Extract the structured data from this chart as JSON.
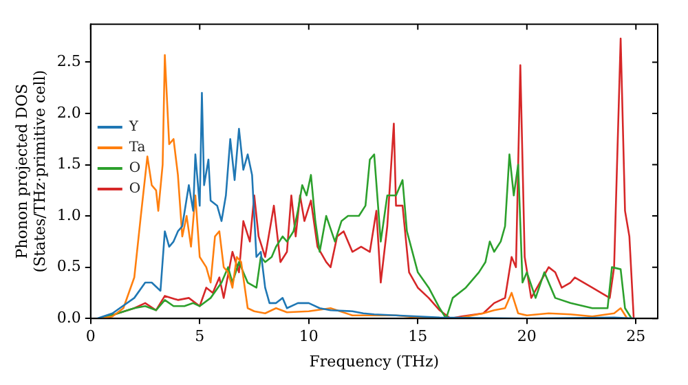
{
  "chart_data": {
    "type": "line",
    "xlabel": "Frequency (THz)",
    "ylabel": "Phonon projected DOS\n(States/THz·primitive cell)",
    "xlim": [
      0,
      26
    ],
    "ylim": [
      0,
      2.87
    ],
    "xticks": [
      0,
      5,
      10,
      15,
      20,
      25
    ],
    "yticks": [
      {
        "value": 0,
        "label": "0.0"
      },
      {
        "value": 0.5,
        "label": "0.5"
      },
      {
        "value": 1,
        "label": "1.0"
      },
      {
        "value": 1.5,
        "label": "1.5"
      },
      {
        "value": 2,
        "label": "2.0"
      },
      {
        "value": 2.5,
        "label": "2.5"
      }
    ],
    "grid": false,
    "legend": "top",
    "marker": "none",
    "line_style": "solid",
    "series": [
      {
        "name": "Y",
        "color": "#1f77b4",
        "x": [
          0.3,
          1,
          2,
          2.5,
          2.8,
          3.2,
          3.4,
          3.6,
          3.8,
          4,
          4.2,
          4.5,
          4.7,
          4.8,
          5,
          5.1,
          5.2,
          5.4,
          5.5,
          5.8,
          6,
          6.2,
          6.4,
          6.6,
          6.8,
          7,
          7.2,
          7.4,
          7.6,
          7.8,
          8,
          8.2,
          8.5,
          8.8,
          9,
          9.5,
          10,
          10.5,
          11,
          12,
          12.5,
          13,
          14,
          15,
          16,
          20,
          24,
          25
        ],
        "values": [
          0,
          0.05,
          0.2,
          0.35,
          0.35,
          0.27,
          0.85,
          0.7,
          0.75,
          0.85,
          0.9,
          1.3,
          1.05,
          1.6,
          1.1,
          2.2,
          1.3,
          1.55,
          1.15,
          1.1,
          0.95,
          1.2,
          1.75,
          1.35,
          1.85,
          1.45,
          1.6,
          1.4,
          0.6,
          0.65,
          0.3,
          0.15,
          0.15,
          0.2,
          0.1,
          0.15,
          0.15,
          0.1,
          0.08,
          0.07,
          0.05,
          0.04,
          0.03,
          0.02,
          0.01,
          0,
          0.01,
          0
        ]
      },
      {
        "name": "Ta",
        "color": "#ff7f0e",
        "x": [
          0.5,
          1,
          1.5,
          2,
          2.3,
          2.6,
          2.8,
          3,
          3.1,
          3.3,
          3.4,
          3.6,
          3.8,
          4,
          4.2,
          4.4,
          4.6,
          4.8,
          5,
          5.3,
          5.5,
          5.7,
          5.9,
          6.1,
          6.3,
          6.5,
          6.7,
          6.9,
          7.2,
          7.5,
          8,
          8.5,
          9,
          10,
          11,
          12,
          13,
          14,
          15,
          16,
          17,
          18,
          18.5,
          19,
          19.3,
          19.6,
          20,
          21,
          22,
          23,
          24,
          24.3,
          24.6
        ],
        "values": [
          0,
          0.02,
          0.1,
          0.4,
          1,
          1.58,
          1.3,
          1.25,
          1.05,
          1.5,
          2.57,
          1.7,
          1.75,
          1.4,
          0.8,
          1,
          0.7,
          1.2,
          0.6,
          0.5,
          0.35,
          0.8,
          0.85,
          0.5,
          0.45,
          0.3,
          0.6,
          0.55,
          0.1,
          0.07,
          0.05,
          0.1,
          0.06,
          0.07,
          0.1,
          0.03,
          0.03,
          0.03,
          0.01,
          0,
          0.01,
          0.05,
          0.08,
          0.1,
          0.25,
          0.05,
          0.03,
          0.05,
          0.04,
          0.02,
          0.05,
          0.1,
          0
        ]
      },
      {
        "name": "O",
        "color": "#2ca02c",
        "x": [
          0.5,
          2,
          2.5,
          3,
          3.4,
          3.8,
          4.3,
          4.7,
          5,
          5.5,
          6,
          6.3,
          6.5,
          6.8,
          7.2,
          7.6,
          7.8,
          8,
          8.3,
          8.5,
          8.8,
          9,
          9.3,
          9.5,
          9.7,
          9.9,
          10.1,
          10.3,
          10.5,
          10.8,
          11.2,
          11.5,
          11.8,
          12.3,
          12.6,
          12.8,
          13,
          13.3,
          13.6,
          14,
          14.3,
          14.5,
          15,
          15.5,
          16,
          16.3,
          16.6,
          17.2,
          17.8,
          18.1,
          18.3,
          18.5,
          18.8,
          19,
          19.2,
          19.4,
          19.6,
          19.8,
          20,
          20.4,
          20.8,
          21.3,
          22,
          23,
          23.7,
          23.9,
          24.3,
          24.5,
          24.8
        ],
        "values": [
          0,
          0.1,
          0.12,
          0.08,
          0.18,
          0.12,
          0.12,
          0.15,
          0.12,
          0.2,
          0.35,
          0.5,
          0.35,
          0.55,
          0.35,
          0.3,
          0.6,
          0.55,
          0.6,
          0.7,
          0.8,
          0.75,
          0.85,
          1.05,
          1.3,
          1.2,
          1.4,
          0.95,
          0.65,
          1,
          0.75,
          0.95,
          1,
          1,
          1.1,
          1.55,
          1.6,
          0.75,
          1.2,
          1.2,
          1.35,
          0.85,
          0.45,
          0.3,
          0.1,
          0,
          0.2,
          0.3,
          0.45,
          0.55,
          0.75,
          0.65,
          0.75,
          0.9,
          1.6,
          1.2,
          1.5,
          0.35,
          0.45,
          0.2,
          0.45,
          0.2,
          0.15,
          0.1,
          0.1,
          0.5,
          0.48,
          0.1,
          0
        ]
      },
      {
        "name": "O",
        "color": "#d62728",
        "x": [
          0.5,
          2,
          2.5,
          3,
          3.4,
          4,
          4.5,
          5,
          5.3,
          5.6,
          5.9,
          6.1,
          6.5,
          6.8,
          7,
          7.3,
          7.5,
          7.7,
          8,
          8.4,
          8.7,
          9,
          9.2,
          9.4,
          9.6,
          9.8,
          10.1,
          10.4,
          10.8,
          11,
          11.3,
          11.6,
          12,
          12.4,
          12.8,
          13.1,
          13.3,
          13.6,
          13.9,
          14,
          14.3,
          14.6,
          15,
          15.5,
          16,
          16.5,
          17,
          18,
          18.5,
          19,
          19.3,
          19.5,
          19.7,
          19.9,
          20.2,
          20.6,
          21,
          21.3,
          21.6,
          22,
          22.2,
          23,
          23.8,
          24,
          24.3,
          24.5,
          24.7,
          24.9
        ],
        "values": [
          0,
          0.1,
          0.15,
          0.08,
          0.22,
          0.18,
          0.2,
          0.12,
          0.3,
          0.25,
          0.4,
          0.2,
          0.65,
          0.45,
          0.95,
          0.75,
          1.2,
          0.8,
          0.6,
          1.1,
          0.55,
          0.65,
          1.2,
          0.8,
          1.2,
          0.95,
          1.15,
          0.7,
          0.55,
          0.5,
          0.8,
          0.85,
          0.65,
          0.7,
          0.65,
          1.05,
          0.35,
          0.9,
          1.9,
          1.1,
          1.1,
          0.45,
          0.3,
          0.2,
          0.08,
          0,
          0.02,
          0.05,
          0.15,
          0.2,
          0.6,
          0.5,
          2.47,
          0.6,
          0.2,
          0.35,
          0.5,
          0.45,
          0.3,
          0.35,
          0.4,
          0.3,
          0.2,
          0.5,
          2.73,
          1.05,
          0.8,
          0
        ]
      }
    ]
  }
}
